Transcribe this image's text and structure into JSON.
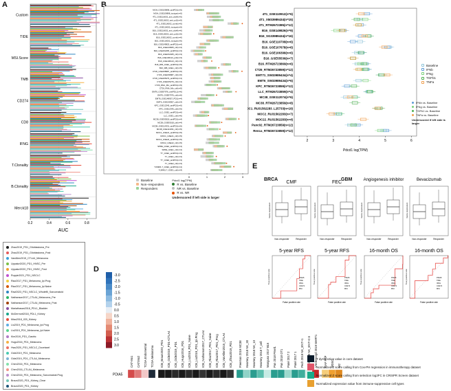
{
  "panels": {
    "a": "A",
    "b": "B",
    "c": "C",
    "d": "D",
    "e": "E"
  },
  "panelA": {
    "xlabel": "AUC",
    "xticks": [
      "0.2",
      "0.4",
      "0.6",
      "0.8"
    ],
    "groups": [
      "Custom",
      "TIDE",
      "MSI.Score",
      "TMB",
      "CD274",
      "CD8",
      "IFNG",
      "T.Clonality",
      "B.Clonality",
      "Merck18"
    ],
    "legend": [
      {
        "label": "Zhao2019_PD1_Glioblastoma_Pre",
        "color": "#1f1f1f"
      },
      {
        "label": "Zhao2019_PD1_Glioblastoma_Post",
        "color": "#e45a5a"
      },
      {
        "label": "VanAllen2015_CTLA4_Melanoma",
        "color": "#3aa0d8"
      },
      {
        "label": "Uppaluri2020_PD1_HNSC_Pre",
        "color": "#7bc043"
      },
      {
        "label": "Uppaluri2020_PD1_HNSC_Post",
        "color": "#f0a030"
      },
      {
        "label": "Ruppin2021_PD1_NSCLC",
        "color": "#c04fd0"
      },
      {
        "label": "Riaz2017_PD1_Melanoma_Ipi.Prog",
        "color": "#f4d03f"
      },
      {
        "label": "Riaz2017_PD1_Melanoma_Ipi.Naive",
        "color": "#d35400"
      },
      {
        "label": "Ravi2023_PD1_NSCLC_Wholefill_Sarcomatoid",
        "color": "#2e86c1"
      },
      {
        "label": "Nathanson2017_CTLA4_Melanoma_Pre",
        "color": "#28b463"
      },
      {
        "label": "Nathanson2017_CTLA4_Melanoma_Post",
        "color": "#a04000"
      },
      {
        "label": "Mariathasan2018_PDL1_Bladder",
        "color": "#884ea0"
      },
      {
        "label": "McDermott2018_PDL1_Kidney",
        "color": "#17a589"
      },
      {
        "label": "Miao2018_ICB_Kidney",
        "color": "#e74c3c"
      },
      {
        "label": "Liu2019_PD1_Melanoma_Ipi.Prog",
        "color": "#5dade2"
      },
      {
        "label": "Liu2019_PD1_Melanoma_Ipi.Naive",
        "color": "#58d68d"
      },
      {
        "label": "Kim2019_PD1_Gastric",
        "color": "#af7ac5"
      },
      {
        "label": "Hugo2016_PD1_Melanoma",
        "color": "#f5b041"
      },
      {
        "label": "Hwu2020_PD1_NSCLC_Docetaxel",
        "color": "#ec7063"
      },
      {
        "label": "Gide2019_PD1_Melanoma",
        "color": "#48c9b0"
      },
      {
        "label": "Gide2019_PD1_CTLA4_Melanoma",
        "color": "#7fb3d5"
      },
      {
        "label": "Chen2016_PD1_Melanoma",
        "color": "#82e0aa"
      },
      {
        "label": "Chen2016_CTLA4_Melanoma",
        "color": "#f1948a"
      },
      {
        "label": "Chen2016_PD1_Melanoma_Sarcomatoid.Prog",
        "color": "#bb8fce"
      },
      {
        "label": "Braun2020_PD1_Kidney_Clear",
        "color": "#73c6b6"
      },
      {
        "label": "Braun2020_PD1_Kidney",
        "color": "#1a5276"
      }
    ]
  },
  "panelB": {
    "legend": [
      "Baseline",
      "Non−responders",
      "Responders"
    ],
    "legend2_title": "Pdcd1 log(TPM)",
    "legend2": [
      "R vs. Baseline",
      "NR vs. Baseline",
      "R vs. NR"
    ],
    "note": "Underscored if left side is larger",
    "rows": [
      "MGH_GSE109898_antiPD1(n=5)",
      "MGH_GSE109898_isotype(n=5)",
      "4T1_GSE116002_anti_ctla4(n=5)",
      "4T1_GSE116002_anti_pd1(n=5)",
      "4T1_GSE116002_comb(n=5)",
      "4T1_GSE116002_isotype(n=5)",
      "B16_GSE116002_anti_ctla4(n=6)",
      "B16_GSE116002_anti_pd1(n=6)",
      "B16_GSE116002_comb(n=6)",
      "B16_GSE116002_isotype(n=6)",
      "B16_GSE149825_antiPD1(n=4)",
      "B16_GSE149825_ctrl(n=4)",
      "B16_GSE152465_antiPD1(n=3)",
      "B16_GSE152465_ctrl(n=3)",
      "B16_GSE106113_pd1(n=3)",
      "B16_GSE106113_ctrl(n=3)",
      "B16_RIB_GSE1_antiPD1(n=5)",
      "B16_RIB_GSE1_ctrl(n=5)",
      "CT26_GSE158987_antiPD1(n=6)",
      "CT26_GSE158987_ctrl(n=6)",
      "CT26_GSE165279_antiPD1(n=4)",
      "CT26_GSE165279_ctrl(n=4)",
      "CT26_RNA_Mix_antiPD1(n=5)",
      "CT26_RNA_Mix_ctrl(n=5)",
      "EMT6_GSE97976_antiPDL1(n=6)",
      "EMT6_GSE97976_ctrl(n=6)",
      "EMT6_GSE148957_PD1(n=4)",
      "EMT6_GSE148957_ctrl(n=4)",
      "KPC_GSE12345_antiPD1(n=5)",
      "KPC_GSE12345_ctrl(n=5)",
      "LLC_GSE1_antiPD1(n=6)",
      "LLC_GSE1_ctrl(n=6)",
      "MC38_GSE93018_antiPD1(n=4)",
      "MC38_GSE93018_ctrl(n=4)",
      "MC38_GSE114331_antiPD1(n=5)",
      "MC38_GSE114331_ctrl(n=5)",
      "MOC1_GSE21_antiPD1(n=5)",
      "MOC1_GSE21_ctrl(n=5)",
      "MOC2_GSE22_antiPD1(n=5)",
      "MOC2_GSE22_ctrl(n=5)",
      "SPRE_GSE1_antiPD1(n=4)",
      "SPRE_GSE1_ctrl(n=4)",
      "TY_GSE1_antiPD1(n=3)",
      "TY_GSE1_ctrl(n=3)",
      "TY_GSE2_antiPD1(n=3)",
      "TY_GSE2_ctrl(n=3)",
      "YUMM1.7_GSE1_antiPD1(n=4)",
      "YUMM1.7_GSE1_ctrl(n=4)"
    ],
    "xticks": [
      "0",
      "1",
      "2",
      "3"
    ]
  },
  "panelC": {
    "xlabel": "Pdcd1 log(TPM)",
    "xticks": [
      "2",
      "3",
      "4",
      "5",
      "6"
    ],
    "rows": [
      "4T1_GSE110912(n=6)",
      "4T1_XM33989434(n=15)",
      "4T1_RTM2672385(n=12)",
      "B16_GSE149826(n=9)",
      "B16_SG33989434(n=16)",
      "B16_GSE110708(n=6)",
      "B16_GSE107678(n=6)",
      "B16_GSE106399(n=6)",
      "B16_GSE55536(n=7)",
      "B16_RTM26723869(n=6)",
      "CT26_RTM26723859(n=12)",
      "EMT71_SW33989434(n=4)",
      "EMT6_SW33989434(n=6)",
      "KPC_RTM26723859(n=12)",
      "LLC_RTM26723859(n=4)",
      "MC38_GSE112074(n=6)",
      "MC38_RTM26723859(n=8)",
      "MOC1_RU31562283_L25733(n=19)",
      "MOC2_RU31562283(n=7)",
      "MOC22_RU31562283(n=4)",
      "Panc02_RTM26723859(n=12)",
      "Renca_RTM26723859(n=12)"
    ],
    "legend": [
      {
        "label": "Baseline",
        "color": "#8ec3d8"
      },
      {
        "label": "IFNb",
        "color": "#5b9bd5"
      },
      {
        "label": "IFNg",
        "color": "#7ad17a"
      },
      {
        "label": "TGFb1",
        "color": "#4caf50"
      },
      {
        "label": "TNFa",
        "color": "#f0a050"
      }
    ],
    "legend2": [
      "IFNb vs. Baseline",
      "IFNg vs. Baseline",
      "TGFb1 vs. Baseline",
      "TNFa vs. Baseline"
    ],
    "note": "Underscored if left side is larger"
  },
  "panelD": {
    "scale": [
      "-3.0",
      "-2.5",
      "-2.0",
      "-1.5",
      "-1.0",
      "-0.5",
      "0.0",
      "0.5",
      "1.0",
      "1.5",
      "2.0",
      "2.5",
      "3.0"
    ],
    "row_label": "PDIA5",
    "cols_a": [
      "CAT-Mo1",
      "CAT/Mo2",
      "TCGA.Endometrial",
      "TCGA.Melanoma"
    ],
    "cols_b": [
      "ICB_Braun2020_PD1",
      "ICB_Gide2019_PD1+CTLA4",
      "ICB_Gide2019_PD1",
      "ICB_Hugo2016_PD1",
      "ICB_Liu2019_PD1_Naive",
      "ICB_Liu2019_PD1_Ipi.Prog",
      "ICB_Nathanson2017_CTLA4",
      "ICB_Riaz2017_PD1_Naive",
      "ICB_Riaz2017_PD1_Prog",
      "ICB_VanAllen2015_CTLA4",
      "ICB_Zhao2019_PD1"
    ],
    "cols_c": [
      "Freeman 2019 MC38",
      "Kearney 2018 NK_30",
      "Kearney 2018 NK_10",
      "Kearney 2018 T_cell",
      "Manguso 2017 B16",
      "Pan 2018 Pmel1",
      "Pan 2018 OT1",
      "Patel 2017 2",
      "Patel 2017 1",
      "Pech 2019 NK_ENT+1",
      "Pech 2019 NK_ENT+2.5",
      "Vredevoogd 2019 MART1"
    ],
    "cols_d": [
      "CAF FAP",
      "MDSC",
      "M2"
    ],
    "legend": [
      {
        "label": "T dysfunction value in core dataset",
        "color": "#0b1b2b"
      },
      {
        "label": "Normalized Z score calling from Cox-PH regression in immunotherapy dataset",
        "color": "#e0556a"
      },
      {
        "label": "Normalized Z score calling from selection log2FC in CRISPR Screen dataset",
        "color": "#1aaa8a"
      },
      {
        "label": "Normalized expression value from immune-suppressive cell types",
        "color": "#e8a030"
      }
    ]
  },
  "panelE": {
    "brca": "BRCA",
    "gbm": "GBM",
    "box_titles": [
      "CMF",
      "FEC",
      "Angiogenesis inhibitor",
      "Bevacizumab"
    ],
    "box_xlabels": [
      "Non-responder",
      "Responder"
    ],
    "box_ylabel": "Gene expression",
    "roc_titles": [
      "5-year RFS",
      "5-year RFS",
      "16-month OS",
      "16-month OS"
    ],
    "roc_xlabel": "False positive rate",
    "roc_ylabel": "True positive rate",
    "roc_legend": [
      "PDIA5",
      "TIDE",
      "IFNG",
      "CD274",
      "MSI"
    ]
  },
  "chart_data": [
    {
      "type": "bar",
      "title": "",
      "xlabel": "AUC",
      "categories": [
        "Custom",
        "TIDE",
        "MSI.Score",
        "TMB",
        "CD274",
        "CD8",
        "IFNG",
        "T.Clonality",
        "B.Clonality",
        "Merck18"
      ],
      "series": [
        {
          "values": [
            0.85,
            0.68,
            0.52,
            0.6,
            0.66,
            0.7,
            0.69,
            0.57,
            0.55,
            0.68
          ]
        }
      ],
      "xlim": [
        0.2,
        0.9
      ]
    }
  ]
}
